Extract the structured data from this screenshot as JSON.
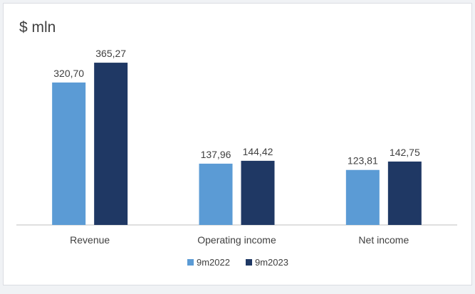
{
  "colors": {
    "series_light": "#5b9bd5",
    "series_dark": "#1f3864",
    "axis": "#bfbfbf",
    "text": "#404040"
  },
  "chart_data": {
    "type": "bar",
    "unit_label": "$ mln",
    "categories": [
      "Revenue",
      "Operating income",
      "Net income"
    ],
    "series": [
      {
        "name": "9m2022",
        "values": [
          320.7,
          137.96,
          123.81
        ],
        "labels": [
          "320,70",
          "137,96",
          "123,81"
        ]
      },
      {
        "name": "9m2023",
        "values": [
          365.27,
          144.42,
          142.75
        ],
        "labels": [
          "365,27",
          "144,42",
          "142,75"
        ]
      }
    ],
    "ylim": [
      0,
      400
    ],
    "grid": false,
    "legend": "bottom"
  }
}
